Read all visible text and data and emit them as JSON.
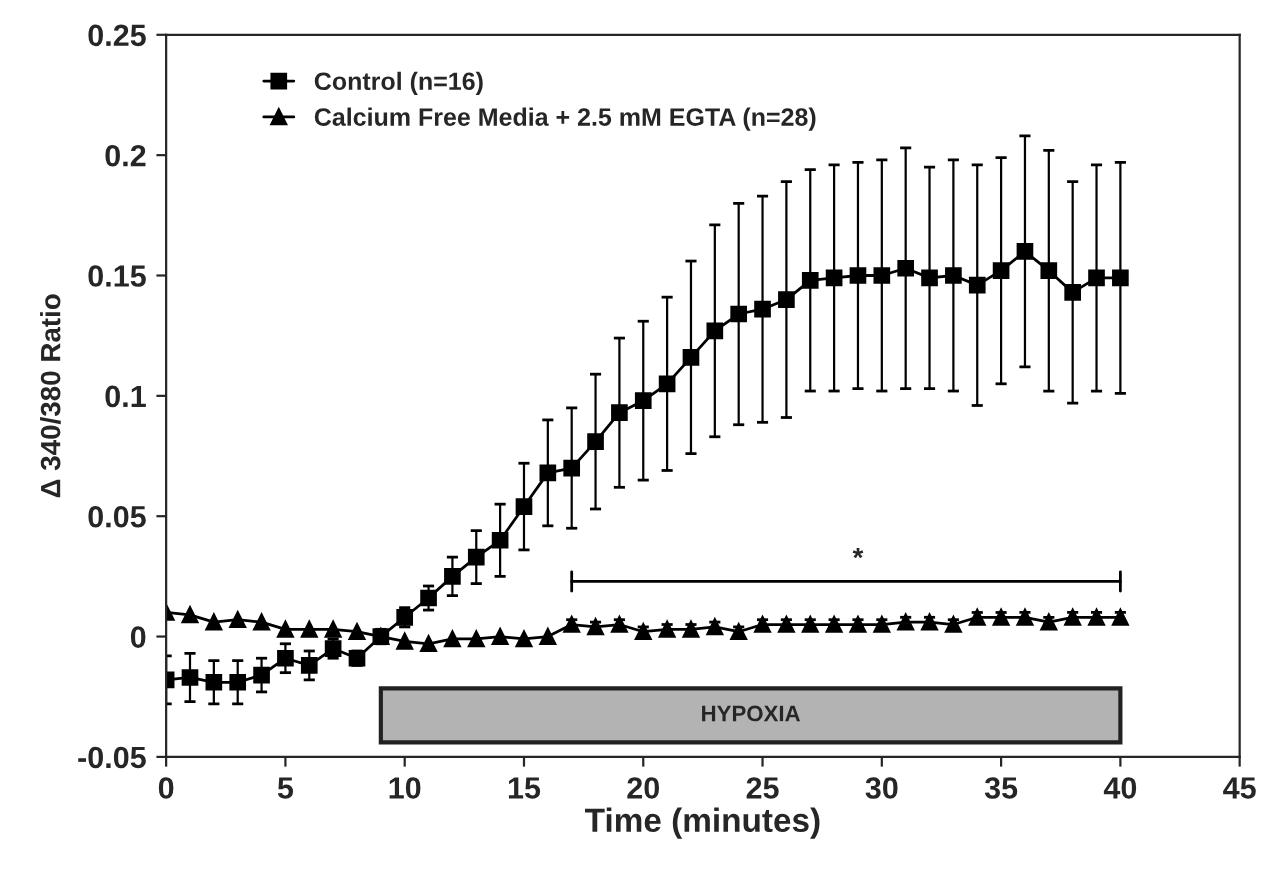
{
  "chart_data": {
    "type": "line",
    "xlabel": "Time (minutes)",
    "ylabel": "Δ 340/380 Ratio",
    "x": [
      0,
      1,
      2,
      3,
      4,
      5,
      6,
      7,
      8,
      9,
      10,
      11,
      12,
      13,
      14,
      15,
      16,
      17,
      18,
      19,
      20,
      21,
      22,
      23,
      24,
      25,
      26,
      27,
      28,
      29,
      30,
      31,
      32,
      33,
      34,
      35,
      36,
      37,
      38,
      39,
      40
    ],
    "series": [
      {
        "name": "Control (n=16)",
        "color": "#000000",
        "marker": "square",
        "values": [
          -0.018,
          -0.017,
          -0.019,
          -0.019,
          -0.016,
          -0.009,
          -0.012,
          -0.005,
          -0.009,
          0.0,
          0.008,
          0.016,
          0.025,
          0.033,
          0.04,
          0.054,
          0.068,
          0.07,
          0.081,
          0.093,
          0.098,
          0.105,
          0.116,
          0.127,
          0.134,
          0.136,
          0.14,
          0.148,
          0.149,
          0.15,
          0.15,
          0.153,
          0.149,
          0.15,
          0.146,
          0.152,
          0.16,
          0.152,
          0.143,
          0.149,
          0.149
        ],
        "errors": [
          0.01,
          0.01,
          0.009,
          0.009,
          0.007,
          0.006,
          0.006,
          0.004,
          0.003,
          0.003,
          0.004,
          0.005,
          0.008,
          0.011,
          0.015,
          0.018,
          0.022,
          0.025,
          0.028,
          0.031,
          0.033,
          0.036,
          0.04,
          0.044,
          0.046,
          0.047,
          0.049,
          0.046,
          0.047,
          0.047,
          0.048,
          0.05,
          0.046,
          0.048,
          0.05,
          0.047,
          0.048,
          0.05,
          0.046,
          0.047,
          0.048
        ]
      },
      {
        "name": "Calcium Free Media + 2.5 mM EGTA (n=28)",
        "color": "#000000",
        "marker": "triangle",
        "values": [
          0.01,
          0.009,
          0.006,
          0.007,
          0.006,
          0.003,
          0.003,
          0.003,
          0.002,
          0.0,
          -0.002,
          -0.003,
          -0.001,
          -0.001,
          0.0,
          -0.001,
          0.0,
          0.005,
          0.004,
          0.005,
          0.002,
          0.003,
          0.003,
          0.004,
          0.002,
          0.005,
          0.005,
          0.005,
          0.005,
          0.005,
          0.005,
          0.006,
          0.006,
          0.005,
          0.008,
          0.008,
          0.008,
          0.006,
          0.008,
          0.008,
          0.008
        ],
        "errors": [
          null,
          null,
          null,
          null,
          null,
          null,
          null,
          null,
          null,
          null,
          null,
          null,
          null,
          null,
          null,
          null,
          null,
          0.002,
          0.002,
          0.002,
          0.002,
          0.002,
          0.002,
          0.002,
          0.002,
          0.002,
          0.002,
          0.002,
          0.002,
          0.002,
          0.002,
          0.002,
          0.002,
          0.002,
          0.002,
          0.002,
          0.002,
          0.002,
          0.002,
          0.002,
          0.002
        ]
      }
    ],
    "xlim": [
      0,
      45
    ],
    "xticks": [
      0,
      5,
      10,
      15,
      20,
      25,
      30,
      35,
      40,
      45
    ],
    "ylim": [
      -0.05,
      0.25
    ],
    "yticks": [
      -0.05,
      0,
      0.05,
      0.1,
      0.15,
      0.2,
      0.25
    ],
    "bands": [
      {
        "axis": "x",
        "from": 9,
        "to": 40,
        "label": "HYPOXIA",
        "color": "#b3b3b3"
      }
    ],
    "annotations": [
      "*"
    ],
    "legend": "top left",
    "grid": false,
    "line_style": "solid"
  }
}
